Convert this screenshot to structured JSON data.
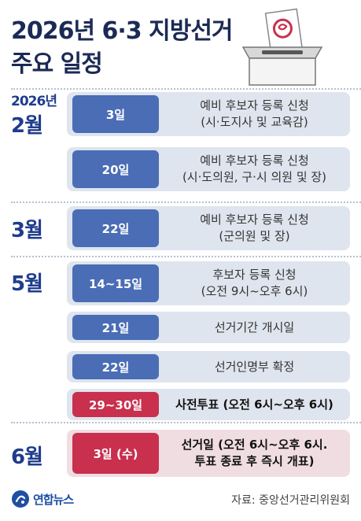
{
  "title": {
    "line1": "2026년 6·3 지방선거",
    "line2": "주요 일정"
  },
  "months": [
    {
      "year": "2026년",
      "label": "2월"
    },
    {
      "label": "3월"
    },
    {
      "label": "5월"
    },
    {
      "label": "6월"
    }
  ],
  "schedule": [
    {
      "day": "3일",
      "line1": "예비 후보자 등록 신청",
      "line2": "(시·도지사 및 교육감)"
    },
    {
      "day": "20일",
      "line1": "예비 후보자 등록 신청",
      "line2": "(시·도의원, 구·시 의원 및 장)"
    },
    {
      "day": "22일",
      "line1": "예비 후보자 등록 신청",
      "line2": "(군의원 및 장)"
    },
    {
      "day": "14~15일",
      "line1": "후보자 등록 신청",
      "line2": "(오전 9시~오후 6시)"
    },
    {
      "day": "21일",
      "line1": "선거기간 개시일"
    },
    {
      "day": "22일",
      "line1": "선거인명부 확정"
    },
    {
      "day": "29~30일",
      "line1": "사전투표 (오전 6시~오후 6시)"
    },
    {
      "day": "3일 (수)",
      "line1": "선거일 (오전 6시~오후 6시.",
      "line2": "투표 종료 후 즉시 개표)"
    }
  ],
  "footer": {
    "logo": "연합뉴스",
    "source": "자료: 중앙선거관리위원회"
  },
  "colors": {
    "title": "#1b2a55",
    "month": "#1f3c8c",
    "day_blue": "#4a6db5",
    "day_red": "#c8304e",
    "row_bg": "#dfe5ee",
    "row_pink": "#f0dde2"
  },
  "icons": [
    "ballot-box-icon",
    "yonhap-logo-icon"
  ]
}
